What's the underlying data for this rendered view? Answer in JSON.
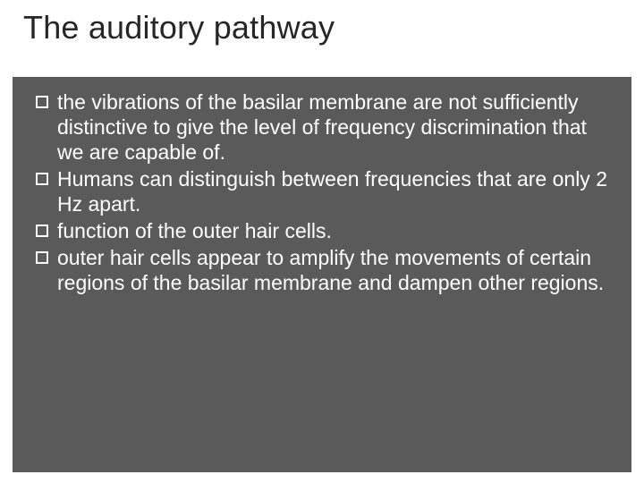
{
  "slide": {
    "title": "The auditory pathway",
    "title_color": "#262626",
    "title_fontsize": 36,
    "background_color": "#ffffff",
    "content_background": "#5a5a5a",
    "bullet_border_color": "#ffffff",
    "bullet_text_color": "#ffffff",
    "bullet_fontsize": 23,
    "bullets": [
      "the vibrations of the basilar membrane are not sufficiently distinctive to give the level of frequency discrimination that we are capable of.",
      "Humans can distinguish between frequencies that are only 2 Hz apart.",
      "function of the outer hair cells.",
      "outer hair cells appear to amplify the movements of certain regions of the basilar membrane and dampen other regions."
    ]
  }
}
